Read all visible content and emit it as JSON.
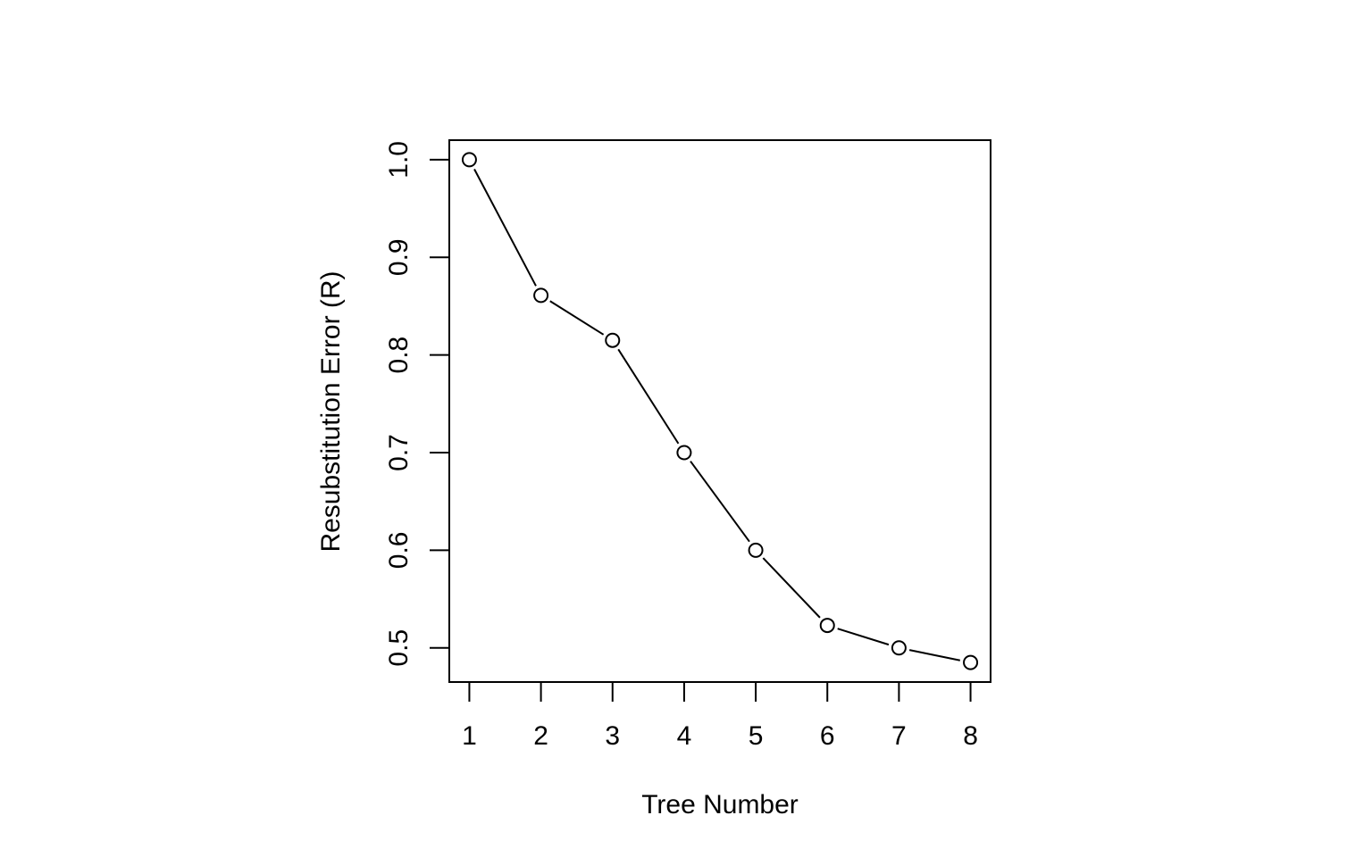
{
  "chart_data": {
    "type": "line",
    "title": "",
    "xlabel": "Tree Number",
    "ylabel": "Resubstitution Error (R)",
    "x": [
      1,
      2,
      3,
      4,
      5,
      6,
      7,
      8
    ],
    "series": [
      {
        "values": [
          1.0,
          0.861,
          0.815,
          0.7,
          0.6,
          0.523,
          0.5,
          0.485
        ]
      }
    ],
    "x_ticks": [
      "1",
      "2",
      "3",
      "4",
      "5",
      "6",
      "7",
      "8"
    ],
    "y_ticks": [
      "0.5",
      "0.6",
      "0.7",
      "0.8",
      "0.9",
      "1.0"
    ],
    "xlim": [
      0.72,
      8.28
    ],
    "ylim": [
      0.465,
      1.02
    ],
    "marker": "open-circle",
    "grid": false,
    "legend": "none",
    "colors": {
      "line": "#000000",
      "marker_fill": "#ffffff",
      "background": "#ffffff"
    }
  }
}
